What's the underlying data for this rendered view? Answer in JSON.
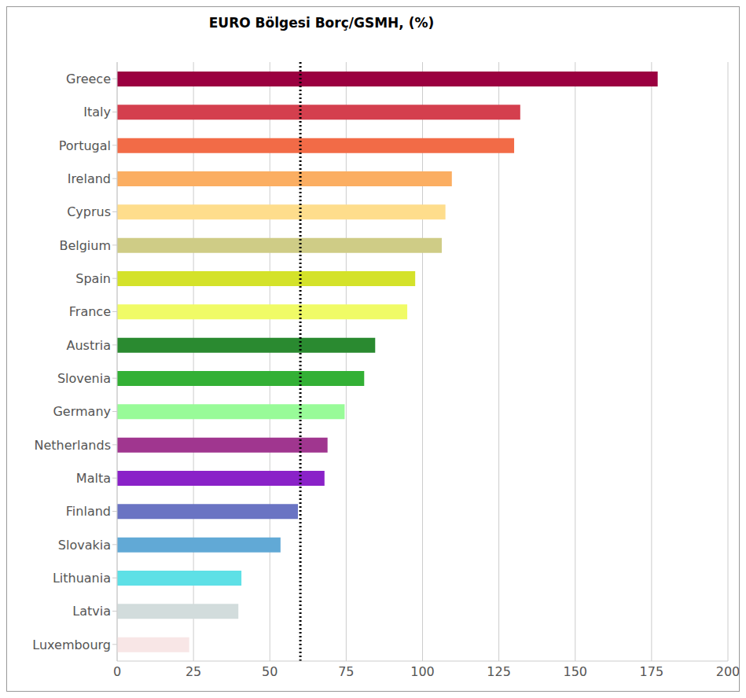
{
  "chart_data": {
    "type": "bar",
    "title": "EURO Bölgesi Borç/GSMH, (%)",
    "orientation": "horizontal",
    "categories": [
      "Greece",
      "Italy",
      "Portugal",
      "Ireland",
      "Cyprus",
      "Belgium",
      "Spain",
      "France",
      "Austria",
      "Slovenia",
      "Germany",
      "Netherlands",
      "Malta",
      "Finland",
      "Slovakia",
      "Lithuania",
      "Latvia",
      "Luxembourg"
    ],
    "values": [
      177,
      132,
      130,
      109.6,
      107.5,
      106.3,
      97.6,
      95,
      84.5,
      80.9,
      74.5,
      68.9,
      67.9,
      59.2,
      53.5,
      40.7,
      39.7,
      23.6
    ],
    "colors": [
      "#9b0040",
      "#d43f4e",
      "#f26b47",
      "#fbae62",
      "#fedd8c",
      "#cfcc86",
      "#d4e22a",
      "#f0fb66",
      "#2a8a30",
      "#33b035",
      "#98fb98",
      "#a0368f",
      "#8a22c8",
      "#6a74c3",
      "#61a9d6",
      "#5ee0e6",
      "#d2dcdc",
      "#f8e6e6"
    ],
    "xlim": [
      0,
      200
    ],
    "xticks": [
      0,
      25,
      50,
      75,
      100,
      125,
      150,
      175,
      200
    ],
    "grid": true,
    "reference_line": 60
  }
}
